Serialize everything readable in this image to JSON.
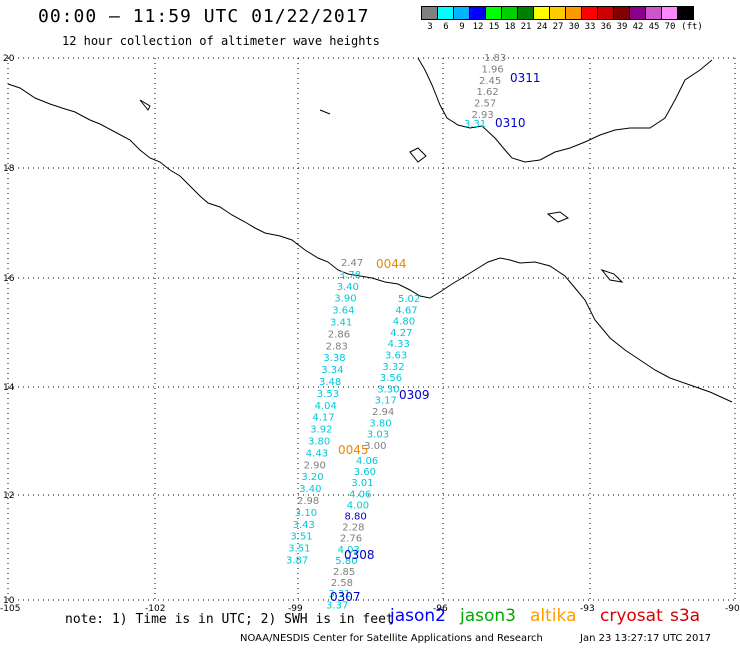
{
  "header": {
    "title": "00:00 – 11:59 UTC 01/22/2017",
    "subtitle": "12 hour collection of altimeter wave heights"
  },
  "scale": {
    "colors": [
      "#808080",
      "#00ffff",
      "#00b4ff",
      "#0000ff",
      "#00ff00",
      "#00d000",
      "#008000",
      "#ffff00",
      "#ffcc00",
      "#ff9900",
      "#ff0000",
      "#cc0000",
      "#800000",
      "#8b008b",
      "#cc55cc",
      "#ff88ff",
      "#000000"
    ],
    "labels": [
      "3",
      "6",
      "9",
      "12",
      "15",
      "18",
      "21",
      "24",
      "27",
      "30",
      "33",
      "36",
      "39",
      "42",
      "45",
      "70",
      "(ft)"
    ]
  },
  "axes": {
    "lon_labels": [
      "-105",
      "-102",
      "-99",
      "-96",
      "-93",
      "-90"
    ],
    "lat_labels": [
      "20",
      "18",
      "16",
      "14",
      "12",
      "10"
    ]
  },
  "passes": [
    {
      "id": "0311",
      "color": "#0000cc",
      "values": [
        {
          "v": "1.83",
          "c": "#808080"
        },
        {
          "v": "1.96",
          "c": "#808080"
        },
        {
          "v": "2.45",
          "c": "#808080"
        },
        {
          "v": "1.62",
          "c": "#808080"
        },
        {
          "v": "2.57",
          "c": "#808080"
        },
        {
          "v": "2.93",
          "c": "#808080"
        }
      ]
    },
    {
      "id": "0310",
      "color": "#0000cc",
      "values": [
        {
          "v": "3.31",
          "c": "#00c8d8"
        }
      ]
    },
    {
      "id": "0044",
      "color": "#ee8800",
      "values": [
        {
          "v": "2.47",
          "c": "#808080"
        },
        {
          "v": "3.78",
          "c": "#00c8d8"
        },
        {
          "v": "3.40",
          "c": "#00c8d8"
        },
        {
          "v": "3.90",
          "c": "#00c8d8"
        },
        {
          "v": "3.64",
          "c": "#00c8d8"
        },
        {
          "v": "3.41",
          "c": "#00c8d8"
        },
        {
          "v": "2.86",
          "c": "#808080"
        },
        {
          "v": "2.83",
          "c": "#808080"
        },
        {
          "v": "3.38",
          "c": "#00c8d8"
        },
        {
          "v": "3.34",
          "c": "#00c8d8"
        },
        {
          "v": "3.48",
          "c": "#00c8d8"
        },
        {
          "v": "3.53",
          "c": "#00c8d8"
        },
        {
          "v": "4.04",
          "c": "#00c8d8"
        },
        {
          "v": "4.17",
          "c": "#00c8d8"
        },
        {
          "v": "3.92",
          "c": "#00c8d8"
        },
        {
          "v": "3.80",
          "c": "#00c8d8"
        },
        {
          "v": "4.43",
          "c": "#00c8d8"
        },
        {
          "v": "2.90",
          "c": "#808080"
        },
        {
          "v": "3.20",
          "c": "#00c8d8"
        },
        {
          "v": "3.40",
          "c": "#00c8d8"
        },
        {
          "v": "2.98",
          "c": "#808080"
        },
        {
          "v": "3.10",
          "c": "#00c8d8"
        },
        {
          "v": "3.43",
          "c": "#00c8d8"
        },
        {
          "v": "3.51",
          "c": "#00c8d8"
        },
        {
          "v": "3.51",
          "c": "#00c8d8"
        },
        {
          "v": "3.87",
          "c": "#00c8d8"
        }
      ]
    },
    {
      "id": "0309",
      "color": "#0000cc",
      "values": [
        {
          "v": "5.02",
          "c": "#00c8d8"
        },
        {
          "v": "4.67",
          "c": "#00c8d8"
        },
        {
          "v": "4.80",
          "c": "#00c8d8"
        },
        {
          "v": "4.27",
          "c": "#00c8d8"
        },
        {
          "v": "4.33",
          "c": "#00c8d8"
        },
        {
          "v": "3.63",
          "c": "#00c8d8"
        },
        {
          "v": "3.32",
          "c": "#00c8d8"
        },
        {
          "v": "3.56",
          "c": "#00c8d8"
        },
        {
          "v": "3.30",
          "c": "#00c8d8"
        },
        {
          "v": "3.17",
          "c": "#00c8d8"
        },
        {
          "v": "2.94",
          "c": "#808080"
        },
        {
          "v": "3.80",
          "c": "#00c8d8"
        },
        {
          "v": "3.03",
          "c": "#00c8d8"
        },
        {
          "v": "3.00",
          "c": "#808080"
        }
      ]
    },
    {
      "id": "0045",
      "color": "#ee8800",
      "values": [
        {
          "v": "4.06",
          "c": "#00c8d8"
        },
        {
          "v": "3.60",
          "c": "#00c8d8"
        },
        {
          "v": "3.01",
          "c": "#00c8d8"
        },
        {
          "v": "4.06",
          "c": "#00c8d8"
        },
        {
          "v": "4.00",
          "c": "#00c8d8"
        },
        {
          "v": "8.80",
          "c": "#0000cc"
        },
        {
          "v": "2.28",
          "c": "#808080"
        },
        {
          "v": "2.76",
          "c": "#808080"
        },
        {
          "v": "4.03",
          "c": "#00c8d8"
        },
        {
          "v": "5.80",
          "c": "#00c8d8"
        },
        {
          "v": "2.85",
          "c": "#808080"
        },
        {
          "v": "2.58",
          "c": "#808080"
        },
        {
          "v": "3.31",
          "c": "#00c8d8"
        },
        {
          "v": "3.37",
          "c": "#00c8d8"
        }
      ]
    },
    {
      "id": "0308",
      "color": "#0000cc",
      "values": []
    },
    {
      "id": "0307",
      "color": "#0000cc",
      "values": []
    }
  ],
  "footer": {
    "note": "note: 1) Time is in UTC; 2) SWH is in feet",
    "satellites": [
      {
        "name": "jason2",
        "color": "#0000ff"
      },
      {
        "name": "jason3",
        "color": "#00aa00"
      },
      {
        "name": "altika",
        "color": "#ff9900"
      },
      {
        "name": "cryosat",
        "color": "#dd0000"
      },
      {
        "name": "s3a",
        "color": "#cc0000"
      }
    ],
    "credit": "NOAA/NESDIS Center for Satellite Applications and Research",
    "timestamp": "Jan 23 13:27:17 UTC 2017"
  }
}
